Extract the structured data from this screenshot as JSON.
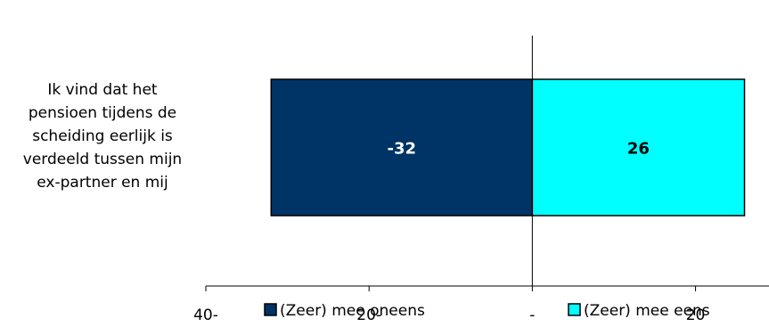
{
  "chart_data": {
    "type": "bar",
    "orientation": "horizontal",
    "stacked": "diverging",
    "categories": [
      "Ik vind dat het pensioen tijdens de scheiding eerlijk is verdeeld tussen mijn ex-partner en mij"
    ],
    "category_lines": [
      "Ik vind dat het",
      "pensioen tijdens de",
      "scheiding eerlijk is",
      "verdeeld tussen mijn",
      "ex-partner en mij"
    ],
    "series": [
      {
        "name": "(Zeer) mee oneens",
        "values": [
          -32
        ],
        "label": "-32",
        "color": "#003366",
        "label_color": "#ffffff"
      },
      {
        "name": "(Zeer) mee eens",
        "values": [
          26
        ],
        "label": "26",
        "color": "#00ffff",
        "label_color": "#000000"
      }
    ],
    "xlim": [
      -40,
      29
    ],
    "xticks": [
      {
        "value": -40,
        "label": "40-"
      },
      {
        "value": -20,
        "label": "20-"
      },
      {
        "value": 0,
        "label": "-"
      },
      {
        "value": 20,
        "label": "20"
      }
    ],
    "grid": false,
    "legend": "bottom"
  }
}
